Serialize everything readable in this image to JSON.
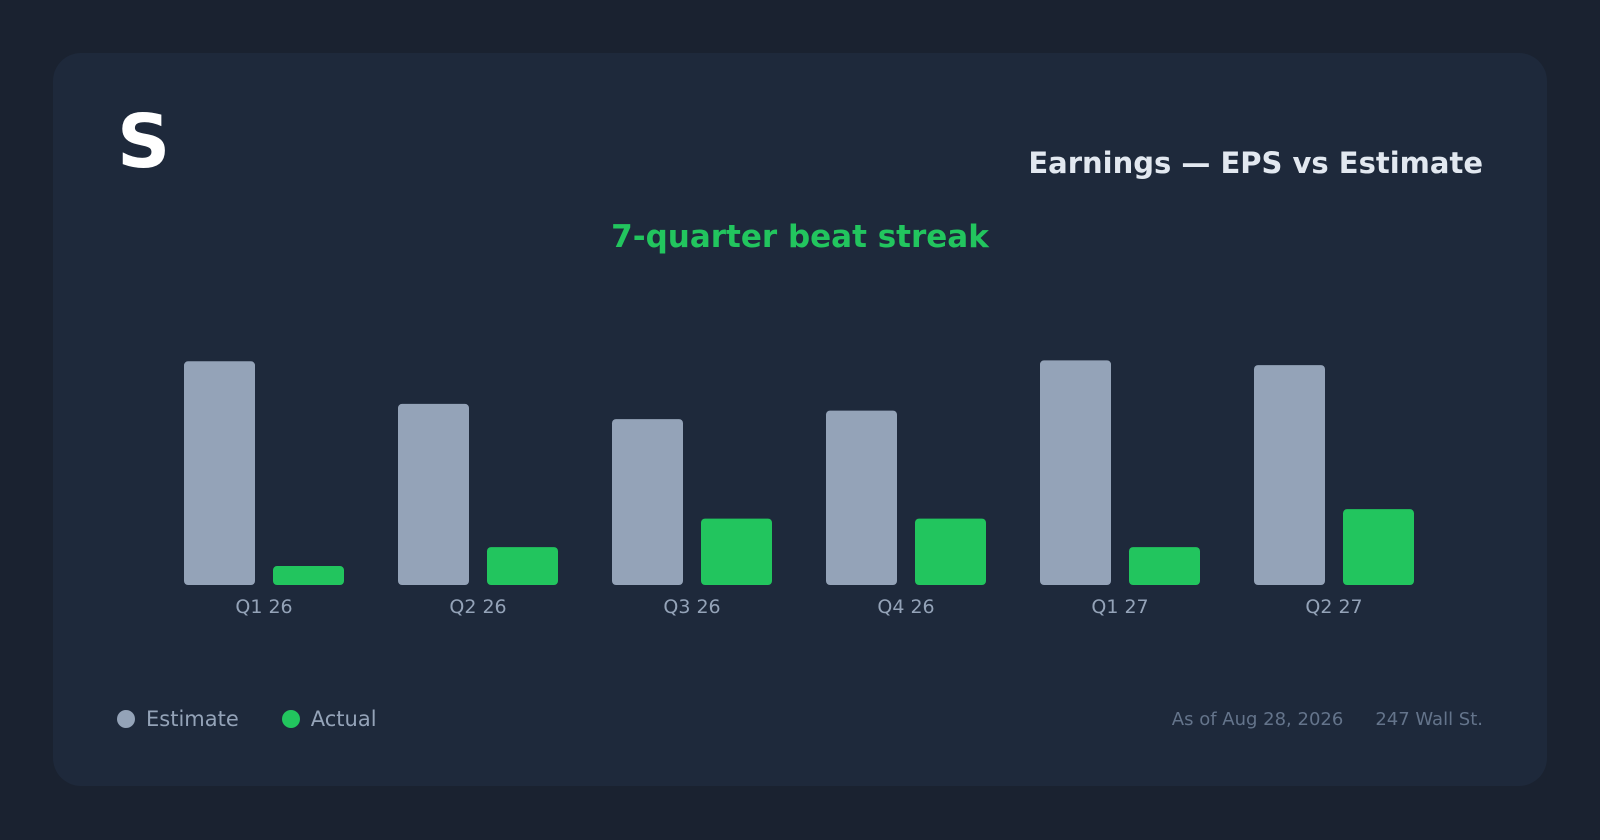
{
  "logo": "S",
  "title": "Earnings — EPS vs Estimate",
  "subtitle": "7-quarter beat streak",
  "legend": [
    {
      "label": "Estimate",
      "color": "#94a3b8"
    },
    {
      "label": "Actual",
      "color": "#22c55e"
    }
  ],
  "footer": {
    "as_of": "As of Aug 28, 2026",
    "source": "247 Wall St."
  },
  "colors": {
    "estimate": "#94a3b8",
    "actual": "#22c55e",
    "tick_label": "#94a3b8"
  },
  "chart_data": {
    "type": "bar",
    "categories": [
      "Q1 26",
      "Q2 26",
      "Q3 26",
      "Q4 26",
      "Q1 27",
      "Q2 27"
    ],
    "series": [
      {
        "name": "Estimate",
        "values": [
          2.36,
          1.91,
          1.75,
          1.84,
          2.37,
          2.32
        ]
      },
      {
        "name": "Actual",
        "values": [
          0.2,
          0.4,
          0.7,
          0.7,
          0.4,
          0.8
        ]
      }
    ],
    "ylim": [
      0,
      2.5
    ],
    "grid": false,
    "legend_position": "bottom-left"
  }
}
